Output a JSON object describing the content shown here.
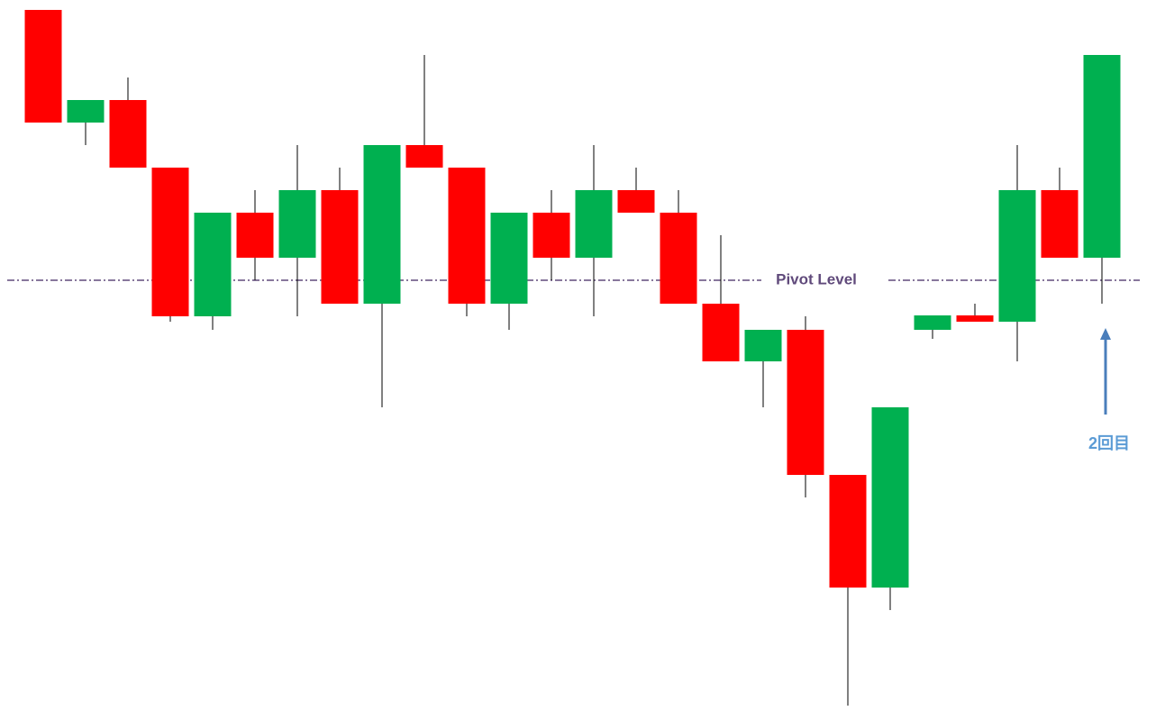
{
  "chart_data": {
    "type": "candlestick",
    "up_color": "#00b050",
    "down_color": "#ff0000",
    "open": [
      31,
      26,
      27,
      24,
      17.4,
      22,
      20,
      23,
      17.96,
      25,
      24,
      17.96,
      22,
      20,
      23,
      22,
      17.96,
      15.4,
      16.8,
      10.36,
      5.36,
      16.8,
      17.44,
      17.16,
      23,
      20
    ],
    "high": [
      31,
      27,
      28,
      24,
      22,
      23,
      25,
      24,
      25,
      29,
      24,
      22,
      23,
      25,
      24,
      23,
      21,
      16.8,
      17.4,
      10.36,
      13.36,
      17.44,
      17.96,
      25,
      24,
      29
    ],
    "low": [
      26,
      25,
      24,
      17.16,
      16.8,
      19,
      17.4,
      17.96,
      13.36,
      24,
      17.4,
      16.8,
      19,
      17.4,
      22,
      17.96,
      15.4,
      13.36,
      9.36,
      0.12,
      4.36,
      16.4,
      17.16,
      15.4,
      20,
      17.96
    ],
    "close": [
      26,
      27,
      24,
      17.4,
      22,
      20,
      23,
      17.96,
      25,
      24,
      17.96,
      22,
      20,
      23,
      22,
      17.96,
      15.4,
      16.8,
      10.36,
      5.36,
      13.36,
      17.44,
      17.16,
      23,
      20,
      29
    ],
    "ylim": [
      0,
      31.44
    ],
    "pivot": {
      "label": "Pivot Level",
      "value": 19,
      "color": "#604a7b"
    },
    "annotation": {
      "text": "2回目",
      "index": 25,
      "color": "#4a7ebb"
    }
  }
}
